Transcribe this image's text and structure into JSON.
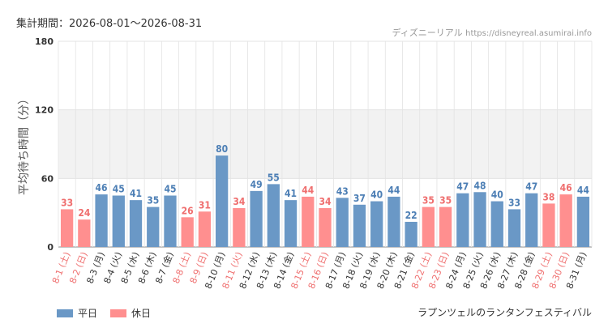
{
  "header": {
    "period_label": "集計期間：",
    "period_value": "2026-08-01〜2026-08-31",
    "park_name": "ディズニーリアル",
    "site_url": "https://disneyreal.asumirai.info"
  },
  "attraction_name": "ラプンツェルのランタンフェスティバル",
  "legend": [
    {
      "label": "平日",
      "color": "#6a98c6"
    },
    {
      "label": "休日",
      "color": "#ff8f8f"
    }
  ],
  "colors": {
    "weekday_bar": "#6a98c6",
    "holiday_bar": "#ff8f8f",
    "weekday_text": "#4d7fb5",
    "holiday_text": "#ef6f6f",
    "band": "#f2f2f2",
    "grid": "#e3e3e3"
  },
  "chart_data": {
    "type": "bar",
    "ylabel": "平均待ち時間（分）",
    "ylim": [
      0,
      180
    ],
    "yticks": [
      0,
      60,
      120,
      180
    ],
    "grid": true,
    "legend_position": "bottom-left",
    "categories": [
      "8-1 (土)",
      "8-2 (日)",
      "8-3 (月)",
      "8-4 (火)",
      "8-5 (水)",
      "8-6 (木)",
      "8-7 (金)",
      "8-8 (土)",
      "8-9 (日)",
      "8-10 (月)",
      "8-11 (火)",
      "8-12 (水)",
      "8-13 (木)",
      "8-14 (金)",
      "8-15 (土)",
      "8-16 (日)",
      "8-17 (月)",
      "8-18 (火)",
      "8-19 (水)",
      "8-20 (木)",
      "8-21 (金)",
      "8-22 (土)",
      "8-23 (日)",
      "8-24 (月)",
      "8-25 (火)",
      "8-26 (水)",
      "8-27 (木)",
      "8-28 (金)",
      "8-29 (土)",
      "8-30 (日)",
      "8-31 (月)"
    ],
    "values": [
      33,
      24,
      46,
      45,
      41,
      35,
      45,
      26,
      31,
      80,
      34,
      49,
      55,
      41,
      44,
      34,
      43,
      37,
      40,
      44,
      22,
      35,
      35,
      47,
      48,
      40,
      33,
      47,
      38,
      46,
      44
    ],
    "day_type": [
      "休日",
      "休日",
      "平日",
      "平日",
      "平日",
      "平日",
      "平日",
      "休日",
      "休日",
      "平日",
      "休日",
      "平日",
      "平日",
      "平日",
      "休日",
      "休日",
      "平日",
      "平日",
      "平日",
      "平日",
      "平日",
      "休日",
      "休日",
      "平日",
      "平日",
      "平日",
      "平日",
      "平日",
      "休日",
      "休日",
      "平日"
    ]
  }
}
